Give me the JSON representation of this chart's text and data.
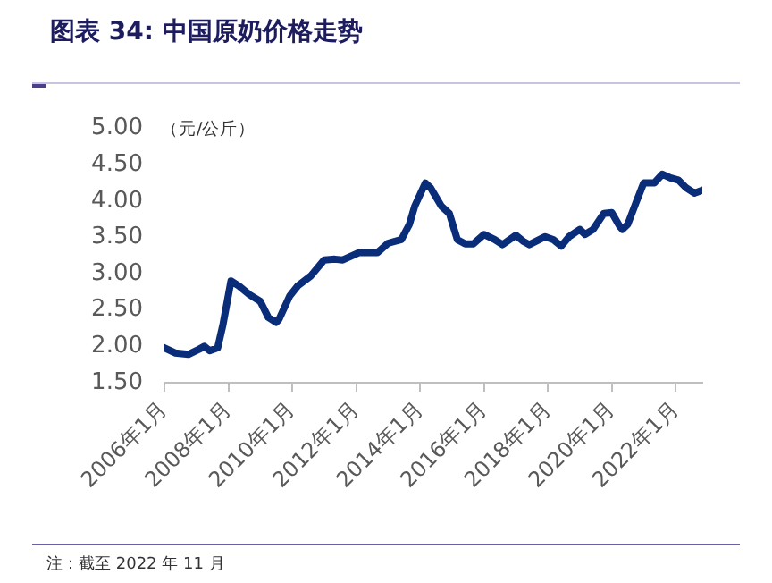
{
  "chart_data": {
    "type": "line",
    "title": "图表 34: 中国原奶价格走势",
    "ylabel": "（元/公斤）",
    "annotations": [
      "注：截至 2022 年 11 月"
    ],
    "x": [
      "2006-01",
      "2006-05",
      "2006-10",
      "2007-02",
      "2007-04",
      "2007-06",
      "2007-09",
      "2007-11",
      "2008-02",
      "2008-05",
      "2008-09",
      "2009-01",
      "2009-04",
      "2009-07",
      "2009-08",
      "2009-12",
      "2010-03",
      "2010-08",
      "2011-01",
      "2011-05",
      "2011-08",
      "2012-02",
      "2012-09",
      "2013-01",
      "2013-06",
      "2013-09",
      "2013-11",
      "2014-03",
      "2014-05",
      "2014-09",
      "2014-12",
      "2015-03",
      "2015-06",
      "2015-09",
      "2016-01",
      "2016-05",
      "2016-08",
      "2017-01",
      "2017-04",
      "2017-06",
      "2017-12",
      "2018-03",
      "2018-06",
      "2018-09",
      "2019-01",
      "2019-03",
      "2019-06",
      "2019-10",
      "2020-01",
      "2020-04",
      "2020-05",
      "2020-07",
      "2020-10",
      "2021-01",
      "2021-05",
      "2021-08",
      "2021-11",
      "2022-02",
      "2022-05",
      "2022-08",
      "2022-11"
    ],
    "series": [
      {
        "color": "#0a2d7a",
        "values": [
          1.98,
          1.91,
          1.89,
          1.96,
          2.0,
          1.94,
          1.98,
          2.3,
          2.9,
          2.83,
          2.71,
          2.62,
          2.4,
          2.33,
          2.37,
          2.69,
          2.83,
          2.97,
          3.19,
          3.2,
          3.19,
          3.29,
          3.29,
          3.42,
          3.47,
          3.68,
          3.93,
          4.25,
          4.18,
          3.93,
          3.83,
          3.47,
          3.41,
          3.41,
          3.54,
          3.47,
          3.4,
          3.53,
          3.44,
          3.4,
          3.51,
          3.47,
          3.38,
          3.51,
          3.61,
          3.54,
          3.61,
          3.83,
          3.84,
          3.65,
          3.61,
          3.68,
          3.97,
          4.25,
          4.25,
          4.37,
          4.32,
          4.29,
          4.18,
          4.11,
          4.15
        ]
      }
    ],
    "xlim": [
      "2006-01",
      "2022-11"
    ],
    "xticks": [
      {
        "value": "2006-01",
        "label": "2006年1月"
      },
      {
        "value": "2008-01",
        "label": "2008年1月"
      },
      {
        "value": "2010-01",
        "label": "2010年1月"
      },
      {
        "value": "2012-01",
        "label": "2012年1月"
      },
      {
        "value": "2014-01",
        "label": "2014年1月"
      },
      {
        "value": "2016-01",
        "label": "2016年1月"
      },
      {
        "value": "2018-01",
        "label": "2018年1月"
      },
      {
        "value": "2020-01",
        "label": "2020年1月"
      },
      {
        "value": "2022-01",
        "label": "2022年1月"
      }
    ],
    "ylim": [
      1.5,
      5
    ],
    "yticks": [
      {
        "value": 1.5,
        "label": "1.50"
      },
      {
        "value": 2,
        "label": "2.00"
      },
      {
        "value": 2.5,
        "label": "2.50"
      },
      {
        "value": 3,
        "label": "3.00"
      },
      {
        "value": 3.5,
        "label": "3.50"
      },
      {
        "value": 4,
        "label": "4.00"
      },
      {
        "value": 4.5,
        "label": "4.50"
      },
      {
        "value": 5,
        "label": "5.00"
      }
    ],
    "grid": false,
    "legend": false,
    "marker": "none",
    "line_style": "solid"
  }
}
